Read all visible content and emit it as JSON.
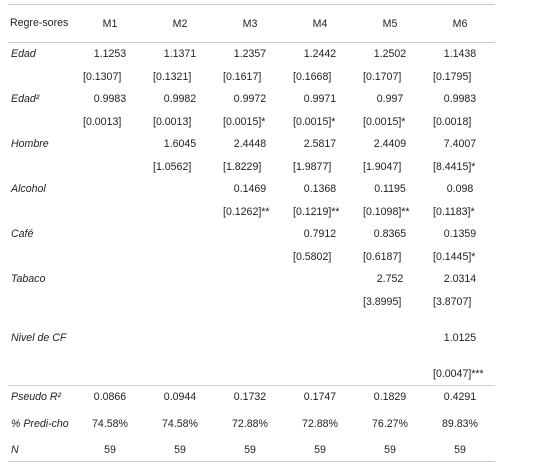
{
  "table": {
    "header": [
      "Regre-sores",
      "M1",
      "M2",
      "M3",
      "M4",
      "M5",
      "M6"
    ],
    "rows": [
      {
        "label": "Edad",
        "coef": [
          "1.1253",
          "1.1371",
          "1.2357",
          "1.2442",
          "1.2502",
          "1.1438"
        ],
        "se": [
          "[0.1307]",
          "[0.1321]",
          "[0.1617]",
          "[0.1668]",
          "[0.1707]",
          "[0.1795]"
        ]
      },
      {
        "label": "Edad²",
        "coef": [
          "0.9983",
          "0.9982",
          "0.9972",
          "0.9971",
          "0.997",
          "0.9983"
        ],
        "se": [
          "[0.0013]",
          "[0.0013]",
          "[0.0015]*",
          "[0.0015]*",
          "[0.0015]*",
          "[0.0018]"
        ]
      },
      {
        "label": "Hombre",
        "coef": [
          "",
          "1.6045",
          "2.4448",
          "2.5817",
          "2.4409",
          "7.4007"
        ],
        "se": [
          "",
          "[1.0562]",
          "[1.8229]",
          "[1.9877]",
          "[1.9047]",
          "[8.4415]*"
        ]
      },
      {
        "label": "Alcohol",
        "coef": [
          "",
          "",
          "0.1469",
          "0.1368",
          "0.1195",
          "0.098"
        ],
        "se": [
          "",
          "",
          "[0.1262]**",
          "[0.1219]**",
          "[0.1098]**",
          "[0.1183]*"
        ]
      },
      {
        "label": "Café",
        "coef": [
          "",
          "",
          "",
          "0.7912",
          "0.8365",
          "0.1359"
        ],
        "se": [
          "",
          "",
          "",
          "[0.5802]",
          "[0.6187]",
          "[0.1445]*"
        ]
      },
      {
        "label": "Tabaco",
        "coef": [
          "",
          "",
          "",
          "",
          "2.752",
          "2.0314"
        ],
        "se": [
          "",
          "",
          "",
          "",
          "[3.8995]",
          "[3.8707]"
        ]
      },
      {
        "label": "Nivel de CF",
        "coef": [
          "",
          "",
          "",
          "",
          "",
          "1.0125"
        ],
        "se": [
          "",
          "",
          "",
          "",
          "",
          "[0.0047]***"
        ]
      }
    ],
    "stats": [
      {
        "label": "Pseudo R²",
        "values": [
          "0.0866",
          "0.0944",
          "0.1732",
          "0.1747",
          "0.1829",
          "0.4291"
        ]
      },
      {
        "label": "% Predi-cho",
        "values": [
          "74.58%",
          "74.58%",
          "72.88%",
          "72.88%",
          "76.27%",
          "89.83%"
        ]
      },
      {
        "label": "N",
        "values": [
          "59",
          "59",
          "59",
          "59",
          "59",
          "59"
        ]
      }
    ]
  }
}
